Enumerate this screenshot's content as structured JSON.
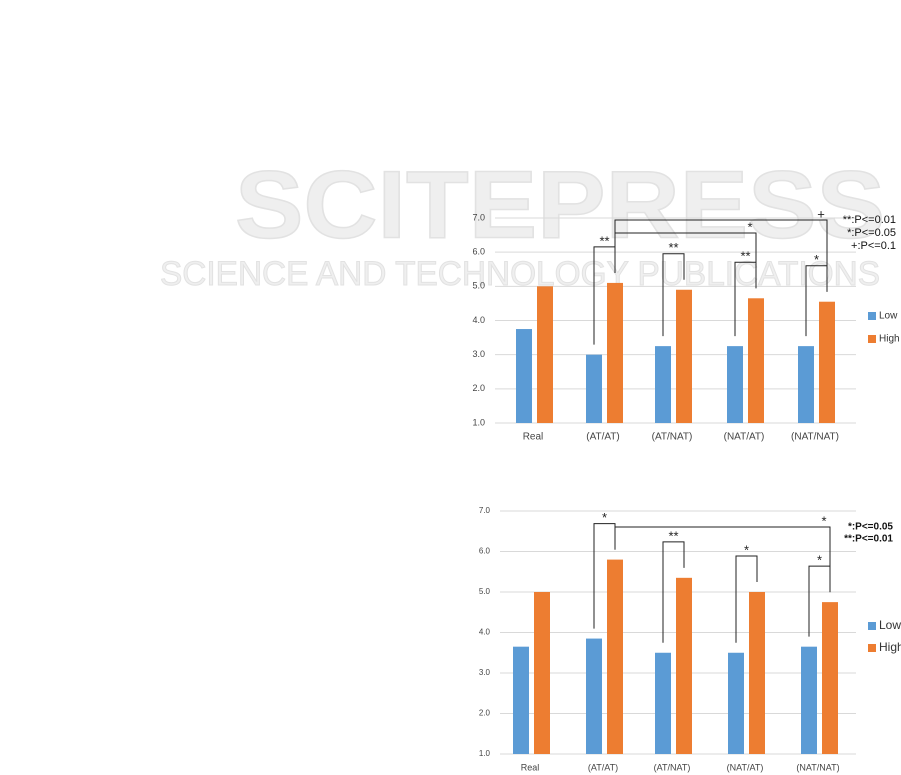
{
  "watermark": {
    "title": "SCITEPRESS",
    "subtitle": "SCIENCE AND TECHNOLOGY PUBLICATIONS"
  },
  "chart_data": [
    {
      "type": "bar",
      "categories": [
        "Real",
        "(AT/AT)",
        "(AT/NAT)",
        "(NAT/AT)",
        "(NAT/NAT)"
      ],
      "series": [
        {
          "name": "Low",
          "color": "#5b9bd5",
          "values": [
            3.75,
            3.0,
            3.25,
            3.25,
            3.25
          ]
        },
        {
          "name": "High",
          "color": "#ed7d31",
          "values": [
            5.0,
            5.1,
            4.9,
            4.65,
            4.55
          ]
        }
      ],
      "ylim": [
        1,
        7
      ],
      "yticks": [
        {
          "value": 1,
          "label": "1.0"
        },
        {
          "value": 2,
          "label": "2.0"
        },
        {
          "value": 3,
          "label": "3.0"
        },
        {
          "value": 4,
          "label": "4.0"
        },
        {
          "value": 5,
          "label": "5.0"
        },
        {
          "value": 6,
          "label": "6.0"
        },
        {
          "value": 7,
          "label": "7.0"
        }
      ],
      "grid": true,
      "annotations": [
        "**",
        "**",
        "**",
        "*",
        "*",
        "+"
      ],
      "significance_key": [
        "**:P<=0.01",
        "*:P<=0.05",
        "+:P<=0.1"
      ]
    },
    {
      "type": "bar",
      "categories": [
        "Real",
        "(AT/AT)",
        "(AT/NAT)",
        "(NAT/AT)",
        "(NAT/NAT)"
      ],
      "series": [
        {
          "name": "Low",
          "color": "#5b9bd5",
          "values": [
            3.65,
            3.85,
            3.5,
            3.5,
            3.65
          ]
        },
        {
          "name": "High",
          "color": "#ed7d31",
          "values": [
            5.0,
            5.8,
            5.35,
            5.0,
            4.75
          ]
        }
      ],
      "ylim": [
        1,
        7
      ],
      "yticks": [
        {
          "value": 1,
          "label": "1.0"
        },
        {
          "value": 2,
          "label": "2.0"
        },
        {
          "value": 3,
          "label": "3.0"
        },
        {
          "value": 4,
          "label": "4.0"
        },
        {
          "value": 5,
          "label": "5.0"
        },
        {
          "value": 6,
          "label": "6.0"
        },
        {
          "value": 7,
          "label": "7.0"
        }
      ],
      "grid": true,
      "annotations": [
        "*",
        "**",
        "*",
        "*",
        "*"
      ],
      "significance_key": [
        "*:P<=0.05",
        "**:P<=0.01"
      ]
    }
  ]
}
